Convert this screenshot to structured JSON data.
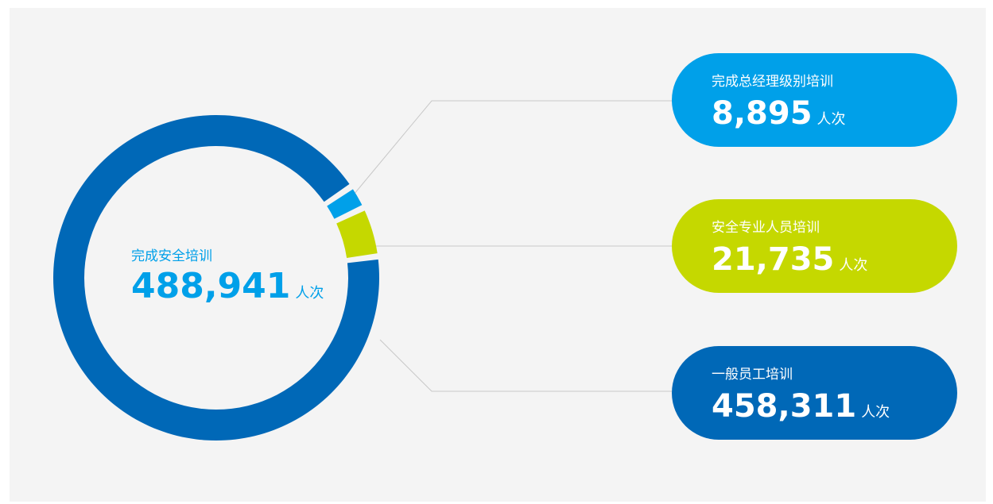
{
  "chart_data": {
    "type": "donut",
    "center_label": "完成安全培训",
    "total": {
      "value": 488941,
      "label": "488,941"
    },
    "unit": "人次",
    "categories": [
      "完成总经理级别培训",
      "安全专业人员培训",
      "一般员工培训"
    ],
    "values": [
      8895,
      21735,
      458311
    ],
    "value_labels": [
      "8,895",
      "21,735",
      "458,311"
    ],
    "colors": [
      "#00a0e9",
      "#c5d800",
      "#0068b7"
    ]
  }
}
